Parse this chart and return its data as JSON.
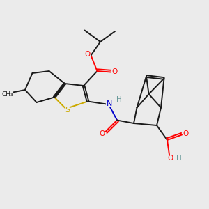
{
  "bg_color": "#ebebeb",
  "atom_colors": {
    "O": "#ff0000",
    "N": "#0000cd",
    "S": "#ccaa00",
    "C": "#1a1a1a",
    "H": "#6a9a9a"
  },
  "lw": 1.4,
  "fontsize": 7.5
}
